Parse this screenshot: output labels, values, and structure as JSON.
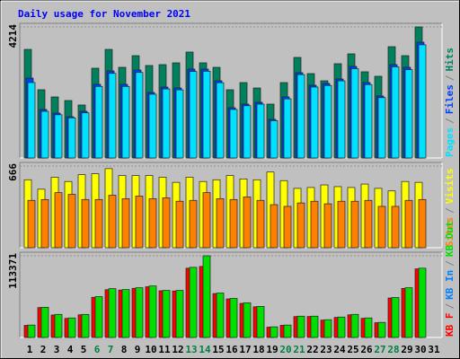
{
  "chart_data": [
    {
      "type": "bar",
      "title": "Daily usage for November 2021",
      "ylim": [
        0,
        4214
      ],
      "yticks": [
        4214
      ],
      "legend_reversed": true,
      "legend_separator": "/",
      "series": [
        {
          "name": "Hits",
          "color": "#00805c",
          "values": [
            3492,
            2194,
            1963,
            1847,
            1703,
            2886,
            3492,
            2915,
            3290,
            2973,
            3002,
            3059,
            3406,
            3059,
            2915,
            2194,
            2424,
            2251,
            1732,
            2424,
            3233,
            2713,
            2482,
            3031,
            3348,
            2771,
            2627,
            3579,
            3290,
            4214,
            0
          ]
        },
        {
          "name": "Files",
          "color": "#0040ff",
          "values": [
            2569,
            1559,
            1443,
            1328,
            1501,
            2367,
            2800,
            2367,
            2829,
            2107,
            2280,
            2251,
            2857,
            2857,
            2482,
            1616,
            1732,
            1790,
            1241,
            1963,
            2742,
            2338,
            2396,
            2540,
            2944,
            2425,
            1992,
            3002,
            2915,
            3723,
            0
          ]
        },
        {
          "name": "Pages",
          "color": "#00e0ff",
          "values": [
            2425,
            1500,
            1390,
            1290,
            1450,
            2300,
            2720,
            2300,
            2750,
            2050,
            2220,
            2190,
            2780,
            2790,
            2420,
            1560,
            1680,
            1730,
            1200,
            1900,
            2680,
            2280,
            2330,
            2480,
            2870,
            2360,
            1940,
            2930,
            2840,
            3640,
            0
          ]
        }
      ]
    },
    {
      "type": "bar",
      "ylim": [
        0,
        666
      ],
      "yticks": [
        666
      ],
      "legend_reversed": true,
      "legend_separator": "/",
      "series": [
        {
          "name": "Visits",
          "color": "#ffff00",
          "values": [
            554,
            477,
            575,
            540,
            596,
            603,
            645,
            589,
            589,
            589,
            575,
            533,
            575,
            540,
            554,
            589,
            561,
            554,
            617,
            547,
            484,
            491,
            512,
            498,
            491,
            519,
            484,
            463,
            540,
            533,
            0
          ]
        },
        {
          "name": "Sites",
          "color": "#ff8000",
          "values": [
            386,
            393,
            449,
            435,
            393,
            393,
            428,
            400,
            421,
            400,
            407,
            379,
            386,
            449,
            400,
            393,
            414,
            386,
            351,
            337,
            365,
            379,
            358,
            379,
            379,
            386,
            337,
            337,
            386,
            393,
            0
          ]
        }
      ]
    },
    {
      "type": "bar",
      "ylim": [
        0,
        113371
      ],
      "yticks": [
        113371
      ],
      "legend_reversed": false,
      "legend_separator": "/",
      "categories": [
        "1",
        "2",
        "3",
        "4",
        "5",
        "6",
        "7",
        "8",
        "9",
        "10",
        "11",
        "12",
        "13",
        "14",
        "15",
        "16",
        "17",
        "18",
        "19",
        "20",
        "21",
        "22",
        "23",
        "24",
        "25",
        "26",
        "27",
        "28",
        "29",
        "30",
        "31"
      ],
      "category_colors": [
        "#000000",
        "#000000",
        "#000000",
        "#000000",
        "#000000",
        "#008040",
        "#008040",
        "#000000",
        "#000000",
        "#000000",
        "#000000",
        "#000000",
        "#008040",
        "#008040",
        "#000000",
        "#000000",
        "#000000",
        "#000000",
        "#000000",
        "#008040",
        "#008040",
        "#000000",
        "#000000",
        "#000000",
        "#000000",
        "#000000",
        "#008040",
        "#008040",
        "#000000",
        "#000000",
        "#000000"
      ],
      "series": [
        {
          "name": "KB F",
          "color": "#ff0000",
          "values": [
            16800,
            41500,
            31200,
            26500,
            31500,
            55800,
            66300,
            65800,
            68200,
            70400,
            64800,
            64500,
            96100,
            98580,
            60900,
            53500,
            47300,
            42600,
            14300,
            16900,
            29000,
            29100,
            24100,
            27800,
            31400,
            26600,
            20500,
            54800,
            68100,
            95200,
            0
          ]
        },
        {
          "name": "KB In",
          "color": "#0080ff",
          "values": [
            0,
            0,
            0,
            0,
            0,
            0,
            0,
            0,
            0,
            0,
            0,
            0,
            0,
            0,
            0,
            0,
            0,
            0,
            0,
            0,
            0,
            0,
            0,
            0,
            0,
            0,
            0,
            0,
            0,
            0,
            0
          ]
        },
        {
          "name": "KB Out",
          "color": "#00e000",
          "values": [
            17252,
            41900,
            32040,
            27110,
            32040,
            56686,
            67776,
            66544,
            69009,
            71473,
            65311,
            65311,
            97354,
            113371,
            61616,
            54222,
            48060,
            43131,
            14788,
            17252,
            29576,
            29576,
            24646,
            28343,
            32040,
            27110,
            20949,
            55454,
            69009,
            96121,
            0
          ]
        }
      ]
    }
  ]
}
